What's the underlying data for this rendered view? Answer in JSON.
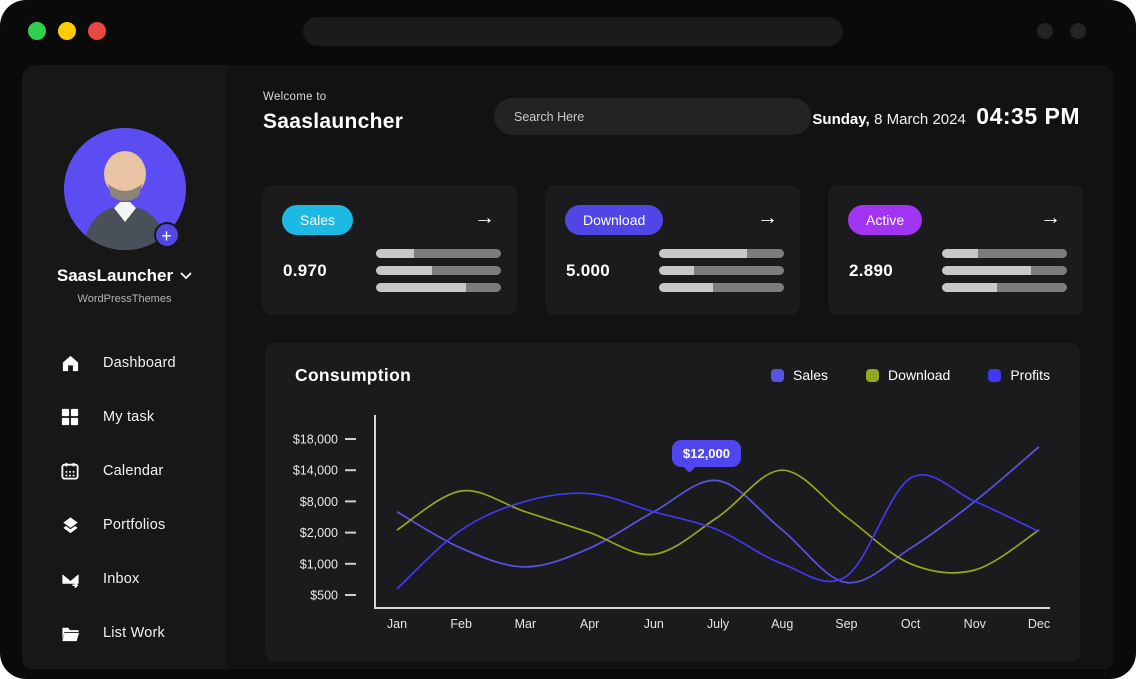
{
  "window": {
    "traffic_lights": [
      {
        "name": "green",
        "color": "#2fd04b"
      },
      {
        "name": "yellow",
        "color": "#fdcb02"
      },
      {
        "name": "red",
        "color": "#e8483f"
      }
    ],
    "titlebar_search_value": ""
  },
  "sidebar": {
    "profile": {
      "name": "SaasLauncher",
      "subtitle": "WordPressThemes",
      "add_label": "+"
    },
    "items": [
      {
        "label": "Dashboard",
        "icon": "home-icon"
      },
      {
        "label": "My task",
        "icon": "grid-icon"
      },
      {
        "label": "Calendar",
        "icon": "calendar-icon"
      },
      {
        "label": "Portfolios",
        "icon": "layers-icon"
      },
      {
        "label": "Inbox",
        "icon": "inbox-icon"
      },
      {
        "label": "List Work",
        "icon": "folder-icon"
      }
    ]
  },
  "header": {
    "welcome_small": "Welcome to",
    "brand": "Saaslauncher",
    "search_placeholder": "Search Here",
    "date_day": "Sunday,",
    "date_rest": " 8 March 2024",
    "time": "04:35 PM"
  },
  "stat_cards": [
    {
      "badge": "Sales",
      "badge_color": "#1cb9e2",
      "value": "0.970",
      "arrow": "→",
      "bars": [
        30,
        45,
        72
      ]
    },
    {
      "badge": "Download",
      "badge_color": "#4f46e5",
      "value": "5.000",
      "arrow": "→",
      "bars": [
        70,
        28,
        43
      ]
    },
    {
      "badge": "Active",
      "badge_color": "#a235f2",
      "value": "2.890",
      "arrow": "→",
      "bars": [
        29,
        71,
        44
      ]
    }
  ],
  "chart_data": {
    "type": "line",
    "title": "Consumption",
    "categories": [
      "Jan",
      "Feb",
      "Mar",
      "Apr",
      "Jun",
      "July",
      "Aug",
      "Sep",
      "Oct",
      "Nov",
      "Dec"
    ],
    "y_tick_labels": [
      "$500",
      "$1,000",
      "$2,000",
      "$8,000",
      "$14,000",
      "$18,000"
    ],
    "y_tick_values": [
      500,
      1000,
      2000,
      8000,
      14000,
      18000
    ],
    "grid": false,
    "legend_position": "top-right",
    "series": [
      {
        "name": "Sales",
        "color": "#5953e4",
        "values": [
          6000,
          1500,
          950,
          1500,
          6000,
          12000,
          2500,
          700,
          1500,
          8000,
          17000
        ]
      },
      {
        "name": "Download",
        "color": "#93a71f",
        "values": [
          2500,
          10000,
          6000,
          2000,
          1300,
          5000,
          14000,
          5000,
          1000,
          900,
          2500
        ]
      },
      {
        "name": "Profits",
        "color": "#4238f2",
        "values": [
          600,
          2500,
          8000,
          9500,
          6000,
          2500,
          1000,
          800,
          12500,
          8000,
          2200
        ]
      }
    ],
    "annotation": {
      "label": "$12,000",
      "series": "Sales",
      "category": "July"
    }
  }
}
